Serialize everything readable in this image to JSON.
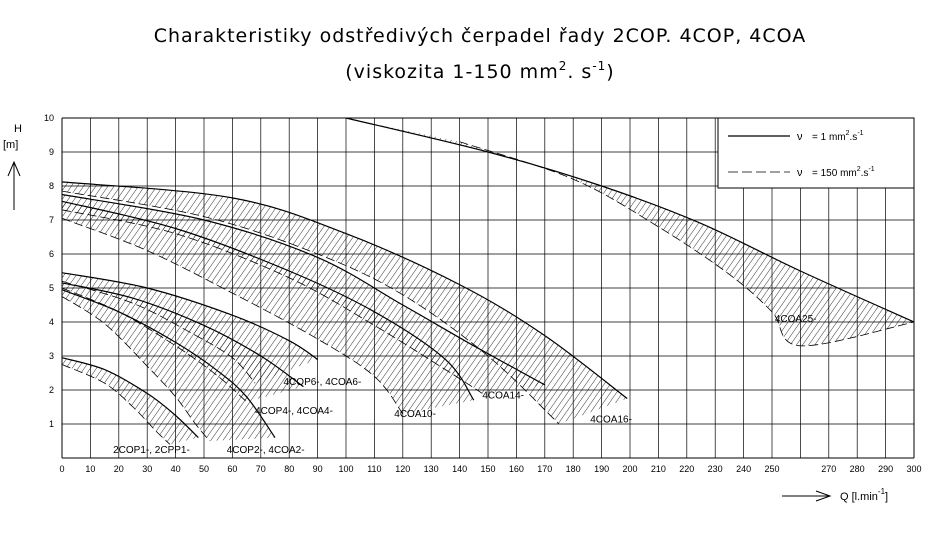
{
  "chart_data": {
    "type": "line",
    "title": "Charakteristiky odstředivých čerpadel řady 2COP. 4COP, 4COA",
    "subtitle_prefix": "(viskozita 1-150 mm",
    "subtitle_mid": ". s",
    "subtitle_suffix": ")",
    "sup2": "2",
    "sup_minus1": "-1",
    "xlabel": "Q [l.min",
    "xlabel_close": "]",
    "ylabel_h": "H",
    "ylabel_unit": "[m]",
    "xlim": [
      0,
      300
    ],
    "ylim": [
      0,
      10
    ],
    "xticks": [
      "0",
      "10",
      "20",
      "30",
      "40",
      "50",
      "60",
      "70",
      "80",
      "90",
      "100",
      "110",
      "120",
      "130",
      "140",
      "150",
      "160",
      "170",
      "180",
      "190",
      "200",
      "210",
      "220",
      "230",
      "240",
      "250",
      "270",
      "280",
      "290",
      "300"
    ],
    "yticks": [
      "1",
      "2",
      "3",
      "4",
      "5",
      "6",
      "7",
      "8",
      "9",
      "10"
    ],
    "legend": {
      "position": "top-right",
      "entries": [
        {
          "style": "solid",
          "label": "= 1 mm",
          "sup1": "2",
          "mid": ".s",
          "sup2": "-1"
        },
        {
          "style": "dashed",
          "label": "= 150 mm",
          "sup1": "2",
          "mid": ".s",
          "sup2": "-1"
        }
      ]
    },
    "series": [
      {
        "name": "2COP1-, 2CPP1-",
        "label_at": [
          18,
          0.15
        ],
        "upper": [
          [
            0,
            2.95
          ],
          [
            15,
            2.6
          ],
          [
            30,
            1.9
          ],
          [
            40,
            1.25
          ],
          [
            48,
            0.6
          ]
        ],
        "lower": [
          [
            0,
            2.75
          ],
          [
            15,
            2.2
          ],
          [
            25,
            1.5
          ],
          [
            33,
            0.8
          ],
          [
            38,
            0.4
          ]
        ]
      },
      {
        "name": "4COP2-, 4COA2-",
        "label_at": [
          58,
          0.15
        ],
        "upper": [
          [
            0,
            4.95
          ],
          [
            20,
            4.3
          ],
          [
            40,
            3.4
          ],
          [
            55,
            2.55
          ],
          [
            65,
            1.8
          ],
          [
            75,
            0.6
          ]
        ],
        "lower": [
          [
            0,
            4.75
          ],
          [
            15,
            3.95
          ],
          [
            30,
            2.7
          ],
          [
            40,
            1.8
          ],
          [
            47,
            1.0
          ],
          [
            52,
            0.5
          ]
        ]
      },
      {
        "name": "4COP4-, 4COA4-",
        "label_at": [
          68,
          1.3
        ],
        "upper": [
          [
            0,
            5.15
          ],
          [
            25,
            4.7
          ],
          [
            50,
            3.9
          ],
          [
            70,
            3.0
          ],
          [
            85,
            2.1
          ]
        ],
        "lower": [
          [
            0,
            5.0
          ],
          [
            20,
            4.3
          ],
          [
            40,
            3.3
          ],
          [
            55,
            2.4
          ],
          [
            65,
            1.65
          ]
        ]
      },
      {
        "name": "4COP6-, 4COA6-",
        "label_at": [
          78,
          2.15
        ],
        "upper": [
          [
            0,
            5.45
          ],
          [
            30,
            5.0
          ],
          [
            60,
            4.2
          ],
          [
            80,
            3.45
          ],
          [
            90,
            2.9
          ]
        ],
        "lower": [
          [
            0,
            5.2
          ],
          [
            25,
            4.55
          ],
          [
            45,
            3.7
          ],
          [
            60,
            2.95
          ],
          [
            68,
            2.2
          ]
        ]
      },
      {
        "name": "4COA10-",
        "label_at": [
          117,
          1.2
        ],
        "upper": [
          [
            0,
            7.55
          ],
          [
            40,
            6.75
          ],
          [
            80,
            5.5
          ],
          [
            110,
            4.3
          ],
          [
            135,
            2.9
          ],
          [
            145,
            1.7
          ]
        ],
        "lower": [
          [
            0,
            7.05
          ],
          [
            30,
            6.1
          ],
          [
            60,
            4.85
          ],
          [
            90,
            3.5
          ],
          [
            110,
            2.4
          ],
          [
            120,
            1.3
          ]
        ]
      },
      {
        "name": "4COA14-",
        "label_at": [
          148,
          1.75
        ],
        "upper": [
          [
            0,
            7.75
          ],
          [
            50,
            7.0
          ],
          [
            90,
            5.9
          ],
          [
            120,
            4.5
          ],
          [
            145,
            3.3
          ],
          [
            170,
            2.15
          ]
        ],
        "lower": [
          [
            0,
            7.3
          ],
          [
            40,
            6.6
          ],
          [
            80,
            5.3
          ],
          [
            110,
            3.9
          ],
          [
            135,
            2.6
          ],
          [
            148,
            1.9
          ]
        ]
      },
      {
        "name": "4COA16-",
        "label_at": [
          186,
          1.05
        ],
        "upper": [
          [
            0,
            8.12
          ],
          [
            60,
            7.65
          ],
          [
            100,
            6.6
          ],
          [
            140,
            5.1
          ],
          [
            170,
            3.6
          ],
          [
            199,
            1.75
          ]
        ],
        "lower": [
          [
            0,
            7.85
          ],
          [
            50,
            7.1
          ],
          [
            90,
            6.0
          ],
          [
            120,
            4.8
          ],
          [
            150,
            3.0
          ],
          [
            175,
            1.0
          ]
        ]
      },
      {
        "name": "4COA25-",
        "label_at": [
          251,
          4.0
        ],
        "upper": [
          [
            100,
            10
          ],
          [
            150,
            9.0
          ],
          [
            190,
            8.0
          ],
          [
            225,
            6.9
          ],
          [
            260,
            5.5
          ],
          [
            300,
            4.0
          ]
        ],
        "lower": [
          [
            140,
            9.3
          ],
          [
            180,
            8.2
          ],
          [
            210,
            6.8
          ],
          [
            235,
            5.4
          ],
          [
            250,
            4.3
          ],
          [
            260,
            3.3
          ],
          [
            300,
            4.0
          ]
        ]
      }
    ]
  }
}
